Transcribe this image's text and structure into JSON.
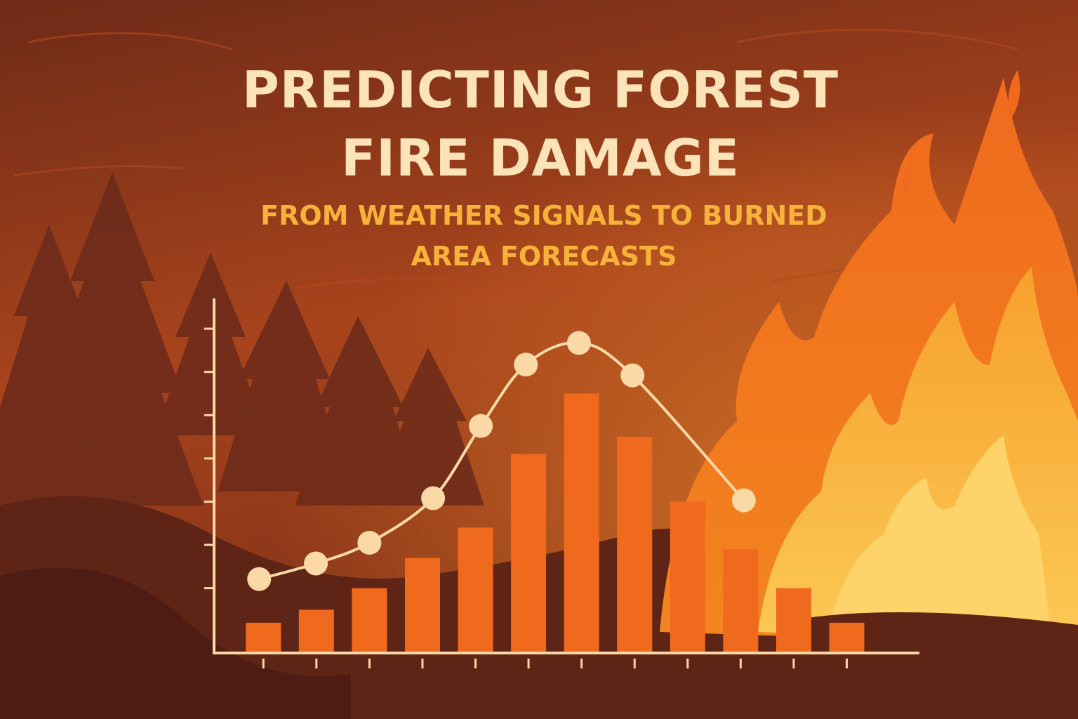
{
  "chart_data": {
    "type": "bar",
    "title": [
      "PREDICTING FOREST",
      "FIRE DAMAGE"
    ],
    "subtitle": [
      "FROM WEATHER SIGNALS TO BURNED",
      "AREA FORECASTS"
    ],
    "categories": [
      null,
      null,
      null,
      null,
      null,
      null,
      null,
      null,
      null,
      null,
      null,
      null
    ],
    "xlim": [
      -0.93,
      12.37
    ],
    "ylim": [
      0,
      8.2
    ],
    "yticks": [
      1.5,
      2.5,
      3.5,
      4.5,
      5.5,
      6.5,
      7.5
    ],
    "series": [
      {
        "type": "bar",
        "color": "#f06a1e",
        "values": [
          0.7,
          1.0,
          1.5,
          2.2,
          2.9,
          4.6,
          6.0,
          5.0,
          3.5,
          2.4,
          1.5,
          0.7
        ]
      },
      {
        "type": "line",
        "color": "#fbd9a6",
        "x": [
          -0.08,
          0.99,
          2.0,
          3.2,
          4.1,
          4.95,
          5.95,
          6.96,
          9.06
        ],
        "values": [
          1.71,
          2.07,
          2.55,
          3.58,
          5.25,
          6.67,
          7.17,
          6.42,
          3.53
        ]
      }
    ]
  }
}
